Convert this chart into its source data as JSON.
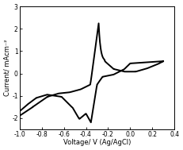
{
  "title": "",
  "xlabel": "Voltage/ V (Ag/AgCl)",
  "ylabel": "Current/ mAcm⁻²",
  "xlim": [
    -1.0,
    0.4
  ],
  "ylim": [
    -2.5,
    3.0
  ],
  "xticks": [
    -1.0,
    -0.8,
    -0.6,
    -0.4,
    -0.2,
    0.0,
    0.2,
    0.4
  ],
  "yticks": [
    -2,
    -1,
    0,
    1,
    2,
    3
  ],
  "bg_color": "#ffffff",
  "line_color": "#000000",
  "line_width": 1.4,
  "figsize": [
    2.31,
    1.89
  ],
  "dpi": 100
}
